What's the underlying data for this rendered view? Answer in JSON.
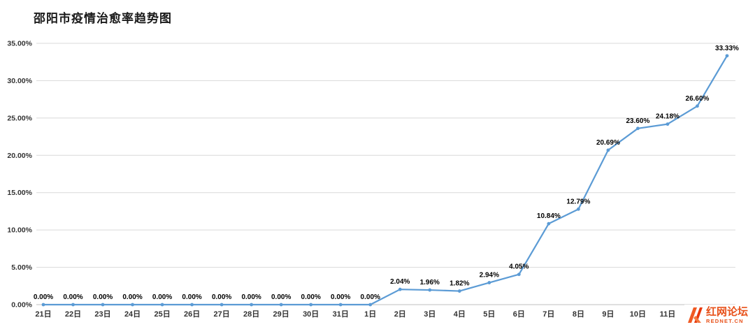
{
  "title": "邵阳市疫情治愈率趋势图",
  "watermark": {
    "name": "红网论坛",
    "domain": "REDNET.CN",
    "color": "#e8511a"
  },
  "chart_data": {
    "type": "line",
    "title": "邵阳市疫情治愈率趋势图",
    "categories": [
      "21日",
      "22日",
      "23日",
      "24日",
      "25日",
      "26日",
      "27日",
      "28日",
      "29日",
      "30日",
      "31日",
      "1日",
      "2日",
      "3日",
      "4日",
      "5日",
      "6日",
      "7日",
      "8日",
      "9日",
      "10日",
      "11日",
      "",
      ""
    ],
    "values": [
      0,
      0,
      0,
      0,
      0,
      0,
      0,
      0,
      0,
      0,
      0,
      0,
      2.04,
      1.96,
      1.82,
      2.94,
      4.05,
      10.84,
      12.79,
      20.69,
      23.6,
      24.18,
      26.6,
      33.33
    ],
    "point_labels": [
      "0.00%",
      "0.00%",
      "0.00%",
      "0.00%",
      "0.00%",
      "0.00%",
      "0.00%",
      "0.00%",
      "0.00%",
      "0.00%",
      "0.00%",
      "0.00%",
      "2.04%",
      "1.96%",
      "1.82%",
      "2.94%",
      "4.05%",
      "10.84%",
      "12.79%",
      "20.69%",
      "23.60%",
      "24.18%",
      "26.60%",
      "33.33%"
    ],
    "ylim": [
      0,
      35
    ],
    "ytick_step": 5,
    "ytick_labels": [
      "0.00%",
      "5.00%",
      "10.00%",
      "15.00%",
      "20.00%",
      "25.00%",
      "30.00%",
      "35.00%"
    ],
    "grid": true,
    "legend": "none",
    "line_color": "#5b9bd5",
    "grid_color": "#d9d9d9",
    "axis_color": "#bfbfbf",
    "label_color": "#000000",
    "tick_color": "#333333"
  }
}
